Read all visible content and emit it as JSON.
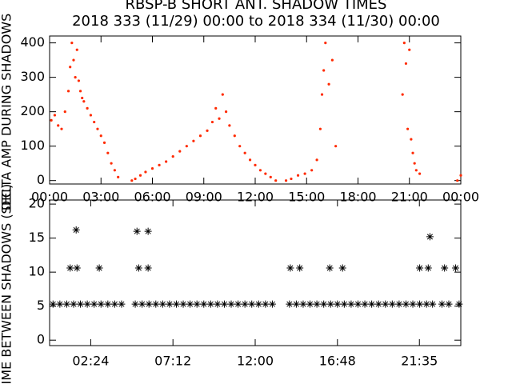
{
  "chart_data": [
    {
      "type": "scatter",
      "title": "RBSP-B SHORT ANT. SHADOW TIMES",
      "subtitle": "2018 333 (11/29) 00:00 to 2018 334 (11/30) 00:00",
      "y_label": "DELTA AMP DURING SHADOWS",
      "marker": "dot",
      "xlim": [
        0,
        24
      ],
      "xticks": [
        {
          "value": 0,
          "label": "00:00"
        },
        {
          "value": 3,
          "label": "03:00"
        },
        {
          "value": 6,
          "label": "06:00"
        },
        {
          "value": 9,
          "label": "09:00"
        },
        {
          "value": 12,
          "label": "12:00"
        },
        {
          "value": 15,
          "label": "15:00"
        },
        {
          "value": 18,
          "label": "18:00"
        },
        {
          "value": 21,
          "label": "21:00"
        },
        {
          "value": 24,
          "label": "00:00"
        }
      ],
      "ylim": [
        -10,
        420
      ],
      "yticks": [
        0,
        100,
        200,
        300,
        400
      ],
      "grid": false,
      "series": [
        {
          "color": "#ff2a00",
          "x": [
            0.1,
            0.3,
            0.5,
            0.7,
            0.9,
            1.1,
            1.2,
            1.3,
            1.4,
            1.5,
            1.6,
            1.7,
            1.8,
            1.9,
            2.0,
            2.2,
            2.4,
            2.6,
            2.8,
            3.0,
            3.2,
            3.4,
            3.6,
            3.8,
            4.0,
            4.8,
            5.0,
            5.3,
            5.6,
            6.0,
            6.4,
            6.8,
            7.2,
            7.6,
            8.0,
            8.4,
            8.8,
            9.2,
            9.5,
            9.7,
            9.9,
            10.1,
            10.3,
            10.5,
            10.8,
            11.1,
            11.4,
            11.7,
            12.0,
            12.3,
            12.6,
            12.9,
            13.2,
            13.8,
            14.1,
            14.5,
            14.9,
            15.3,
            15.6,
            15.8,
            15.9,
            16.0,
            16.1,
            16.3,
            16.5,
            16.7,
            20.6,
            20.7,
            20.8,
            20.9,
            21.0,
            21.1,
            21.2,
            21.3,
            21.4,
            21.6,
            23.8,
            24
          ],
          "values": [
            175,
            190,
            160,
            150,
            200,
            260,
            330,
            400,
            350,
            300,
            380,
            290,
            260,
            240,
            230,
            210,
            190,
            170,
            150,
            130,
            110,
            80,
            50,
            30,
            10,
            0,
            5,
            15,
            25,
            35,
            45,
            55,
            70,
            85,
            100,
            115,
            130,
            145,
            170,
            210,
            180,
            250,
            200,
            160,
            130,
            100,
            80,
            60,
            45,
            30,
            20,
            10,
            0,
            0,
            5,
            15,
            20,
            30,
            60,
            150,
            250,
            320,
            400,
            280,
            350,
            100,
            250,
            400,
            340,
            150,
            380,
            120,
            80,
            50,
            30,
            20,
            0,
            15
          ]
        }
      ]
    },
    {
      "type": "scatter",
      "y_label": "TIME BETWEEN SHADOWS (SEC)",
      "marker": "asterisk",
      "xlim": [
        0,
        24
      ],
      "xticks": [
        {
          "value": 2.4,
          "label": "02:24"
        },
        {
          "value": 7.2,
          "label": "07:12"
        },
        {
          "value": 12,
          "label": "12:00"
        },
        {
          "value": 16.8,
          "label": "16:48"
        },
        {
          "value": 21.5833,
          "label": "21:35"
        }
      ],
      "ylim": [
        -0.8,
        20.6
      ],
      "yticks": [
        0,
        5,
        10,
        15,
        20
      ],
      "grid": false,
      "series": [
        {
          "color": "#000000",
          "x": [
            0.2,
            0.6,
            1.0,
            1.4,
            1.8,
            2.2,
            2.6,
            3.0,
            3.4,
            3.8,
            4.2,
            5.0,
            5.4,
            5.8,
            6.2,
            6.6,
            7.0,
            7.4,
            7.8,
            8.2,
            8.6,
            9.0,
            9.4,
            9.8,
            10.2,
            10.6,
            11.0,
            11.4,
            11.8,
            12.2,
            12.6,
            13.0,
            14.0,
            14.4,
            14.8,
            15.2,
            15.6,
            16.0,
            16.4,
            16.8,
            17.2,
            17.6,
            18.0,
            18.4,
            18.8,
            19.2,
            19.6,
            20.0,
            20.4,
            20.8,
            21.2,
            21.6,
            22.0,
            22.35,
            22.9,
            23.3,
            23.9,
            1.2,
            1.6,
            1.55,
            2.9,
            5.1,
            5.75,
            5.2,
            5.75,
            14.05,
            14.6,
            16.35,
            17.1,
            21.6,
            22.1,
            22.2,
            23.05,
            23.7
          ],
          "values": [
            5.3,
            5.3,
            5.3,
            5.3,
            5.3,
            5.3,
            5.3,
            5.3,
            5.3,
            5.3,
            5.3,
            5.3,
            5.3,
            5.3,
            5.3,
            5.3,
            5.3,
            5.3,
            5.3,
            5.3,
            5.3,
            5.3,
            5.3,
            5.3,
            5.3,
            5.3,
            5.3,
            5.3,
            5.3,
            5.3,
            5.3,
            5.3,
            5.3,
            5.3,
            5.3,
            5.3,
            5.3,
            5.3,
            5.3,
            5.3,
            5.3,
            5.3,
            5.3,
            5.3,
            5.3,
            5.3,
            5.3,
            5.3,
            5.3,
            5.3,
            5.3,
            5.3,
            5.3,
            5.3,
            5.3,
            5.3,
            5.3,
            10.6,
            10.6,
            16.2,
            10.6,
            16,
            16,
            10.6,
            10.6,
            10.6,
            10.6,
            10.6,
            10.6,
            10.6,
            10.6,
            15.2,
            10.6,
            10.6
          ]
        }
      ]
    }
  ]
}
